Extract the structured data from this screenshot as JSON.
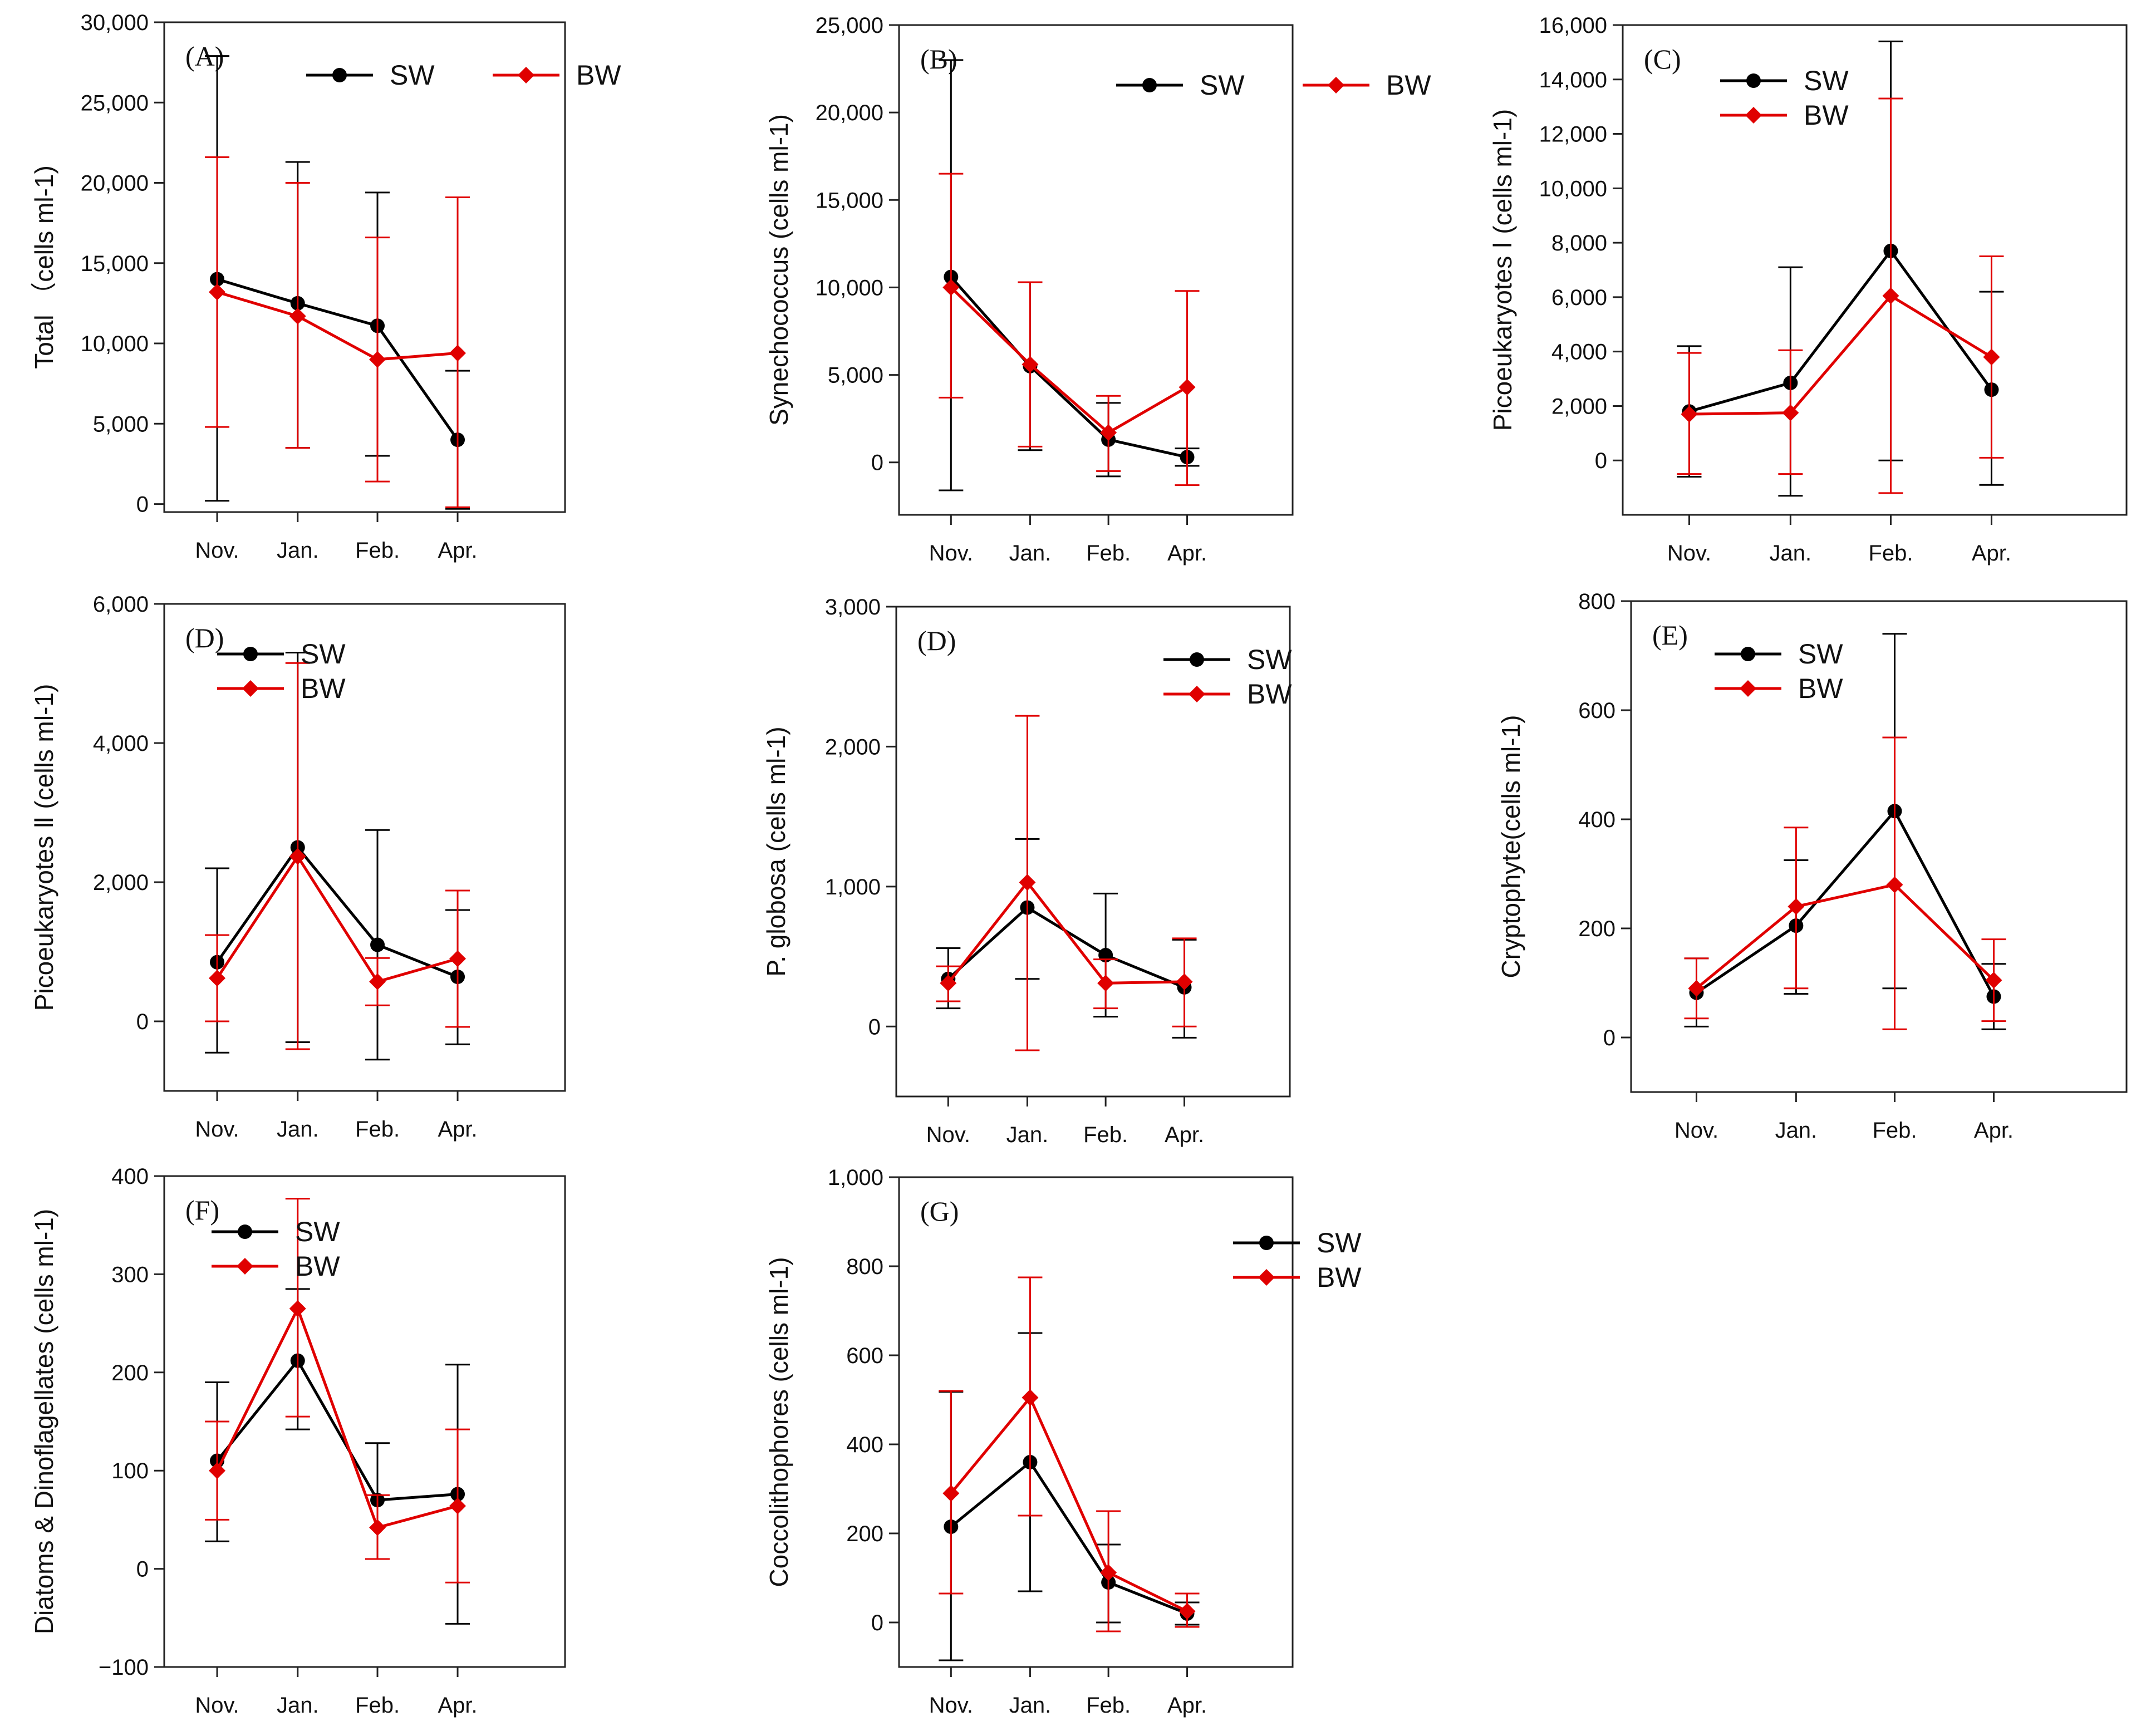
{
  "figure": {
    "series_colors": {
      "SW": "#000000",
      "BW": "#e00000"
    }
  },
  "chart_data": [
    {
      "type": "line",
      "panel": "(A)",
      "ylabel": "Total （cells ml-1)",
      "categories": [
        "Nov.",
        "Jan.",
        "Feb.",
        "Apr."
      ],
      "ylim": [
        -500,
        30000
      ],
      "yticks": [
        0,
        5000,
        10000,
        15000,
        20000,
        25000,
        30000
      ],
      "ytick_labels": [
        "0",
        "5,000",
        "10,000",
        "15,000",
        "20,000",
        "25,000",
        "30,000"
      ],
      "legend": {
        "placement": "top-right",
        "layout": "row",
        "entries": [
          "SW",
          "BW"
        ]
      },
      "series": [
        {
          "name": "SW",
          "color": "#000000",
          "marker": "circle",
          "values": [
            14000,
            12500,
            11100,
            4000
          ],
          "err_low": [
            200,
            3500,
            3000,
            -300
          ],
          "err_high": [
            27900,
            21300,
            19400,
            8300
          ]
        },
        {
          "name": "BW",
          "color": "#e00000",
          "marker": "diamond",
          "values": [
            13200,
            11700,
            9000,
            9400
          ],
          "err_low": [
            4800,
            3500,
            1400,
            -200
          ],
          "err_high": [
            21600,
            20000,
            16600,
            19100
          ]
        }
      ]
    },
    {
      "type": "line",
      "panel": "(B)",
      "ylabel": "Synechococcus (cells ml-1)",
      "categories": [
        "Nov.",
        "Jan.",
        "Feb.",
        "Apr."
      ],
      "ylim": [
        -3000,
        25000
      ],
      "yticks": [
        0,
        5000,
        10000,
        15000,
        20000,
        25000
      ],
      "ytick_labels": [
        "0",
        "5,000",
        "10,000",
        "15,000",
        "20,000",
        "25,000"
      ],
      "legend": {
        "placement": "top-right",
        "layout": "row",
        "entries": [
          "SW",
          "BW"
        ]
      },
      "series": [
        {
          "name": "SW",
          "color": "#000000",
          "marker": "circle",
          "values": [
            10600,
            5500,
            1300,
            300
          ],
          "err_low": [
            -1600,
            700,
            -800,
            -200
          ],
          "err_high": [
            23000,
            10300,
            3400,
            800
          ]
        },
        {
          "name": "BW",
          "color": "#e00000",
          "marker": "diamond",
          "values": [
            10000,
            5600,
            1700,
            4300
          ],
          "err_low": [
            3700,
            900,
            -500,
            -1300
          ],
          "err_high": [
            16500,
            10300,
            3800,
            9800
          ]
        }
      ]
    },
    {
      "type": "line",
      "panel": "(C)",
      "ylabel": "Picoeukaryotes Ⅰ (cells ml-1)",
      "categories": [
        "Nov.",
        "Jan.",
        "Feb.",
        "Apr."
      ],
      "ylim": [
        -2000,
        16000
      ],
      "yticks": [
        0,
        2000,
        4000,
        6000,
        8000,
        10000,
        12000,
        14000,
        16000
      ],
      "ytick_labels": [
        "0",
        "2,000",
        "4,000",
        "6,000",
        "8,000",
        "10,000",
        "12,000",
        "14,000",
        "16,000"
      ],
      "legend": {
        "placement": "top-left",
        "layout": "column",
        "entries": [
          "SW",
          "BW"
        ]
      },
      "series": [
        {
          "name": "SW",
          "color": "#000000",
          "marker": "circle",
          "values": [
            1800,
            2850,
            7700,
            2600
          ],
          "err_low": [
            -600,
            -1300,
            0,
            -900
          ],
          "err_high": [
            4200,
            7100,
            15400,
            6200
          ]
        },
        {
          "name": "BW",
          "color": "#e00000",
          "marker": "diamond",
          "values": [
            1700,
            1750,
            6050,
            3800
          ],
          "err_low": [
            -500,
            -500,
            -1200,
            100
          ],
          "err_high": [
            3950,
            4050,
            13300,
            7500
          ]
        }
      ]
    },
    {
      "type": "line",
      "panel": "(D)",
      "ylabel": "Picoeukaryotes Ⅱ (cells ml-1)",
      "categories": [
        "Nov.",
        "Jan.",
        "Feb.",
        "Apr."
      ],
      "ylim": [
        -1000,
        6000
      ],
      "yticks": [
        0,
        2000,
        4000,
        6000
      ],
      "ytick_labels": [
        "0",
        "2,000",
        "4,000",
        "6,000"
      ],
      "legend": {
        "placement": "top-right",
        "layout": "column",
        "entries": [
          "SW",
          "BW"
        ]
      },
      "series": [
        {
          "name": "SW",
          "color": "#000000",
          "marker": "circle",
          "values": [
            850,
            2500,
            1100,
            640
          ],
          "err_low": [
            -450,
            -300,
            -550,
            -330
          ],
          "err_high": [
            2200,
            5300,
            2750,
            1600
          ]
        },
        {
          "name": "BW",
          "color": "#e00000",
          "marker": "diamond",
          "values": [
            620,
            2370,
            570,
            900
          ],
          "err_low": [
            0,
            -400,
            230,
            -80
          ],
          "err_high": [
            1240,
            5150,
            910,
            1880
          ]
        }
      ]
    },
    {
      "type": "line",
      "panel": "(D)",
      "ylabel": "P. globosa (cells ml-1)",
      "categories": [
        "Nov.",
        "Jan.",
        "Feb.",
        "Apr."
      ],
      "ylim": [
        -500,
        3000
      ],
      "yticks": [
        0,
        1000,
        2000,
        3000
      ],
      "ytick_labels": [
        "0",
        "1,000",
        "2,000",
        "3,000"
      ],
      "legend": {
        "placement": "top-right",
        "layout": "column",
        "entries": [
          "SW",
          "BW"
        ]
      },
      "series": [
        {
          "name": "SW",
          "color": "#000000",
          "marker": "circle",
          "values": [
            340,
            850,
            510,
            280
          ],
          "err_low": [
            130,
            340,
            70,
            -80
          ],
          "err_high": [
            560,
            1340,
            950,
            620
          ]
        },
        {
          "name": "BW",
          "color": "#e00000",
          "marker": "diamond",
          "values": [
            310,
            1030,
            310,
            320
          ],
          "err_low": [
            180,
            -170,
            130,
            0
          ],
          "err_high": [
            430,
            2220,
            480,
            630
          ]
        }
      ]
    },
    {
      "type": "line",
      "panel": "(E)",
      "ylabel": "Cryptophyte(cells ml-1)",
      "categories": [
        "Nov.",
        "Jan.",
        "Feb.",
        "Apr."
      ],
      "ylim": [
        -100,
        800
      ],
      "yticks": [
        0,
        200,
        400,
        600,
        800
      ],
      "ytick_labels": [
        "0",
        "200",
        "400",
        "600",
        "800"
      ],
      "legend": {
        "placement": "top-left",
        "layout": "column",
        "entries": [
          "SW",
          "BW"
        ]
      },
      "series": [
        {
          "name": "SW",
          "color": "#000000",
          "marker": "circle",
          "values": [
            82,
            205,
            415,
            75
          ],
          "err_low": [
            20,
            80,
            90,
            15
          ],
          "err_high": [
            145,
            325,
            740,
            135
          ]
        },
        {
          "name": "BW",
          "color": "#e00000",
          "marker": "diamond",
          "values": [
            90,
            240,
            280,
            105
          ],
          "err_low": [
            35,
            90,
            15,
            30
          ],
          "err_high": [
            145,
            385,
            550,
            180
          ]
        }
      ]
    },
    {
      "type": "line",
      "panel": "(F)",
      "ylabel": "Diatoms & Dinoflagellates (cells ml-1)",
      "categories": [
        "Nov.",
        "Jan.",
        "Feb.",
        "Apr."
      ],
      "ylim": [
        -100,
        400
      ],
      "yticks": [
        -100,
        0,
        100,
        200,
        300,
        400
      ],
      "ytick_labels": [
        "−100",
        "0",
        "100",
        "200",
        "300",
        "400"
      ],
      "legend": {
        "placement": "top-right",
        "layout": "column",
        "entries": [
          "SW",
          "BW"
        ]
      },
      "series": [
        {
          "name": "SW",
          "color": "#000000",
          "marker": "circle",
          "values": [
            110,
            212,
            70,
            76
          ],
          "err_low": [
            28,
            142,
            10,
            -56
          ],
          "err_high": [
            190,
            285,
            128,
            208
          ]
        },
        {
          "name": "BW",
          "color": "#e00000",
          "marker": "diamond",
          "values": [
            100,
            265,
            42,
            64
          ],
          "err_low": [
            50,
            155,
            10,
            -14
          ],
          "err_high": [
            150,
            377,
            75,
            142
          ]
        }
      ]
    },
    {
      "type": "line",
      "panel": "(G)",
      "ylabel": "Coccolithophores (cells ml-1)",
      "categories": [
        "Nov.",
        "Jan.",
        "Feb.",
        "Apr."
      ],
      "ylim": [
        -100,
        1000
      ],
      "yticks": [
        0,
        200,
        400,
        600,
        800,
        1000
      ],
      "ytick_labels": [
        "0",
        "200",
        "400",
        "600",
        "800",
        "1,000"
      ],
      "legend": {
        "placement": "top-right",
        "layout": "column",
        "entries": [
          "SW",
          "BW"
        ]
      },
      "series": [
        {
          "name": "SW",
          "color": "#000000",
          "marker": "circle",
          "values": [
            215,
            360,
            90,
            20
          ],
          "err_low": [
            -85,
            70,
            0,
            -5
          ],
          "err_high": [
            518,
            650,
            175,
            45
          ]
        },
        {
          "name": "BW",
          "color": "#e00000",
          "marker": "diamond",
          "values": [
            290,
            505,
            112,
            25
          ],
          "err_low": [
            65,
            240,
            -20,
            -10
          ],
          "err_high": [
            520,
            775,
            250,
            65
          ]
        }
      ]
    }
  ]
}
